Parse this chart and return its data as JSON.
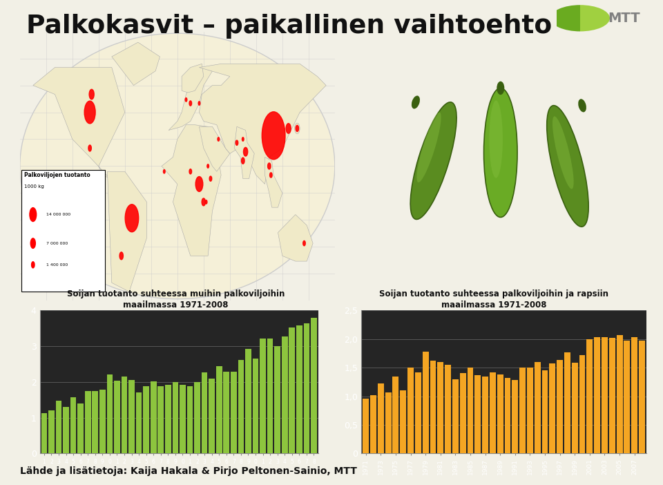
{
  "title": "Palkokasvit – paikallinen vaihtoehto",
  "footer": "Lähde ja lisätietoja: Kaija Hakala & Pirjo Peltonen-Sainio, MTT",
  "chart1_title_line1": "Soijan tuotanto suhteessa muihin palkoviljoihin",
  "chart1_title_line2": "maailmassa 1971-2008",
  "chart2_title_line1": "Soijan tuotanto suhteessa palkoviljoihin ja rapsiin",
  "chart2_title_line2": "maailmassa 1971-2008",
  "years": [
    1971,
    1972,
    1973,
    1974,
    1975,
    1976,
    1977,
    1978,
    1979,
    1980,
    1981,
    1982,
    1983,
    1984,
    1985,
    1986,
    1987,
    1988,
    1989,
    1990,
    1991,
    1992,
    1993,
    1994,
    1995,
    1996,
    1997,
    1998,
    1999,
    2000,
    2001,
    2002,
    2003,
    2004,
    2005,
    2006,
    2007,
    2008
  ],
  "chart1_values": [
    1.12,
    1.2,
    1.48,
    1.3,
    1.58,
    1.4,
    1.75,
    1.75,
    1.78,
    2.2,
    2.04,
    2.15,
    2.06,
    1.7,
    1.88,
    2.02,
    1.88,
    1.92,
    2.0,
    1.92,
    1.88,
    2.0,
    2.27,
    2.1,
    2.45,
    2.28,
    2.28,
    2.62,
    2.92,
    2.65,
    3.22,
    3.22,
    3.0,
    3.28,
    3.53,
    3.58,
    3.63,
    3.8
  ],
  "chart2_values": [
    0.96,
    1.02,
    1.22,
    1.07,
    1.35,
    1.1,
    1.5,
    1.42,
    1.78,
    1.62,
    1.6,
    1.55,
    1.3,
    1.4,
    1.5,
    1.37,
    1.35,
    1.42,
    1.38,
    1.32,
    1.28,
    1.5,
    1.5,
    1.6,
    1.45,
    1.57,
    1.63,
    1.77,
    1.58,
    1.72,
    2.0,
    2.03,
    2.03,
    2.02,
    2.07,
    1.97,
    2.03,
    1.97
  ],
  "chart1_color": "#8DC53E",
  "chart2_color": "#F5A623",
  "chart_bg": "#252525",
  "chart_plot_bg": "#4A4A4A",
  "text_color": "#FFFFFF",
  "grid_color": "#888888",
  "chart1_ylim": [
    0,
    4
  ],
  "chart1_yticks": [
    0,
    1,
    2,
    3,
    4
  ],
  "chart2_ylim": [
    0,
    2.5
  ],
  "chart2_yticks": [
    0,
    0.5,
    1.0,
    1.5,
    2.0,
    2.5
  ],
  "slide_bg": "#F2F0E6",
  "map_bg": "#F5F0D8",
  "map_land": "#F0EAC8",
  "map_border": "#AAAAAA",
  "legend_box_bg": "#FFFFFF",
  "mtt_color": "#808080",
  "mtt_green": "#6AAB20"
}
